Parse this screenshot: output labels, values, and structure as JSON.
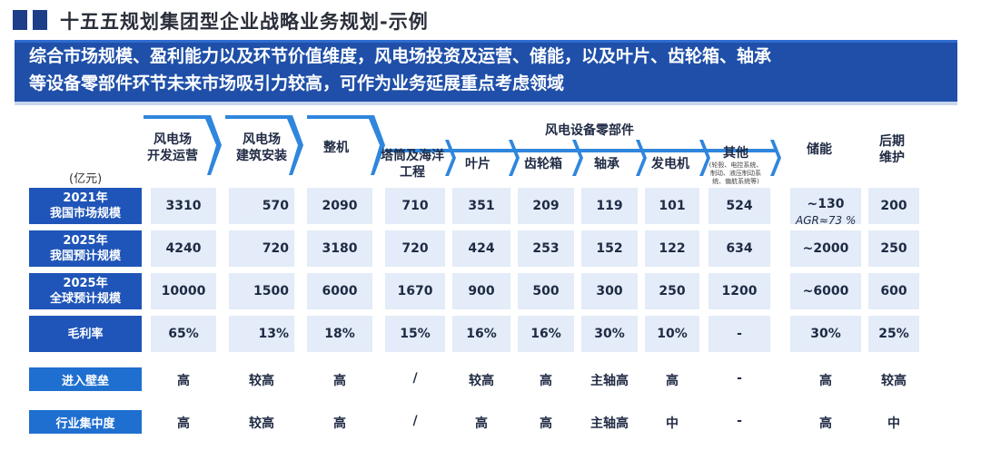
{
  "header": {
    "title": "十五五规划集团型企业战略业务规划-示例"
  },
  "banner": {
    "line1": "综合市场规模、盈利能力以及环节价值维度，风电场投资及运营、储能，以及叶片、齿轮箱、轴承",
    "line2": "等设备零部件环节未来市场吸引力较高，可作为业务延展重点考虑领域"
  },
  "table": {
    "unit": "(亿元)",
    "group_label": "风电设备零部件",
    "columns": [
      {
        "l1": "风电场",
        "l2": "开发运营"
      },
      {
        "l1": "风电场",
        "l2": "建筑安装"
      },
      {
        "l1": "整机",
        "l2": ""
      },
      {
        "l1": "塔筒及海洋",
        "l2": "工程"
      },
      {
        "l1": "叶片",
        "l2": ""
      },
      {
        "l1": "齿轮箱",
        "l2": ""
      },
      {
        "l1": "轴承",
        "l2": ""
      },
      {
        "l1": "发电机",
        "l2": ""
      },
      {
        "l1": "其他",
        "l2": "(轮毂、电控系统、",
        "l3": "制动、液压制动系",
        "l4": "统、偏航系统等)"
      },
      {
        "l1": "储能",
        "l2": ""
      },
      {
        "l1": "后期",
        "l2": "维护"
      }
    ],
    "rows": [
      {
        "label1": "2021年",
        "label2": "我国市场规模",
        "values": [
          "3310",
          "570",
          "2090",
          "710",
          "351",
          "209",
          "119",
          "101",
          "524",
          "~130",
          "200"
        ]
      },
      {
        "label1": "2025年",
        "label2": "我国预计规模",
        "values": [
          "4240",
          "720",
          "3180",
          "720",
          "424",
          "253",
          "152",
          "122",
          "634",
          "~2000",
          "250"
        ]
      },
      {
        "label1": "2025年",
        "label2": "全球预计规模",
        "values": [
          "10000",
          "1500",
          "6000",
          "1670",
          "900",
          "500",
          "300",
          "250",
          "1200",
          "~6000",
          "600"
        ]
      },
      {
        "label1": "毛利率",
        "label2": "",
        "values": [
          "65%",
          "13%",
          "18%",
          "15%",
          "16%",
          "16%",
          "30%",
          "10%",
          "-",
          "30%",
          "25%"
        ]
      }
    ],
    "agr_note": "AGR≈73 %",
    "qualitative": [
      {
        "label": "进入壁垒",
        "values": [
          "高",
          "较高",
          "高",
          "/",
          "较高",
          "高",
          "主轴高",
          "高",
          "-",
          "高",
          "较高"
        ]
      },
      {
        "label": "行业集中度",
        "values": [
          "高",
          "较高",
          "高",
          "/",
          "高",
          "高",
          "主轴高",
          "中",
          "-",
          "高",
          "中"
        ]
      }
    ]
  },
  "colors": {
    "banner": "#1f4fa8",
    "row_label": "#1f55b8",
    "cell": "#e3ecf8",
    "chevron": "#2f86dd"
  }
}
